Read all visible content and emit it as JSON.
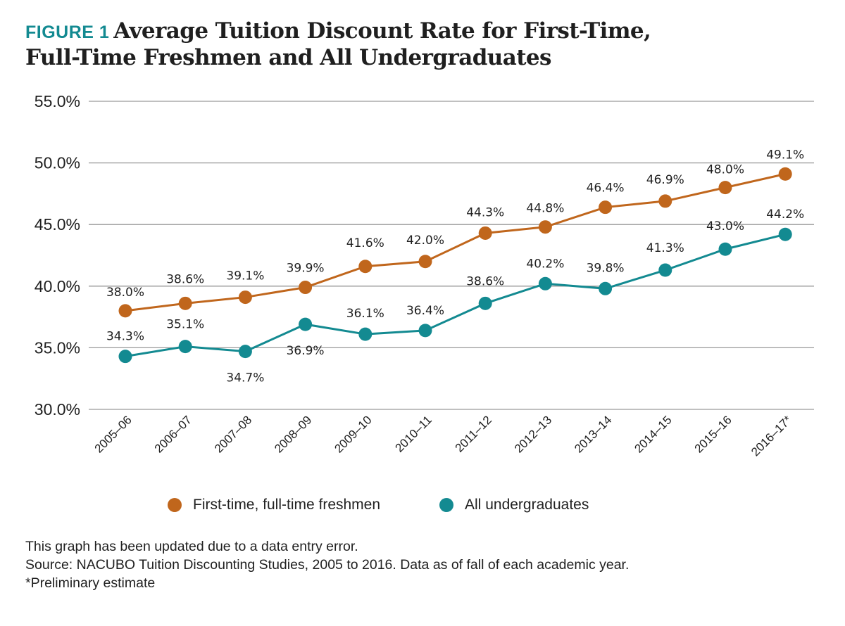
{
  "header": {
    "figure_label": "FIGURE 1",
    "title_line1": "Average Tuition Discount Rate for First-Time,",
    "title_line2": "Full-Time Freshmen and All Undergraduates"
  },
  "chart_data": {
    "type": "line",
    "title": "Average Tuition Discount Rate for First-Time, Full-Time Freshmen and All Undergraduates",
    "xlabel": "",
    "ylabel": "",
    "ylim": [
      30,
      55
    ],
    "yticks": [
      30,
      35,
      40,
      45,
      50,
      55
    ],
    "ytick_labels": [
      "30.0%",
      "35.0%",
      "40.0%",
      "45.0%",
      "50.0%",
      "55.0%"
    ],
    "grid": true,
    "categories": [
      "2005–06",
      "2006–07",
      "2007–08",
      "2008–09",
      "2009–10",
      "2010–11",
      "2011–12",
      "2012–13",
      "2013–14",
      "2014–15",
      "2015–16",
      "2016–17*"
    ],
    "series": [
      {
        "name": "First-time, full-time freshmen",
        "color": "#c0661c",
        "values": [
          38.0,
          38.6,
          39.1,
          39.9,
          41.6,
          42.0,
          44.3,
          44.8,
          46.4,
          46.9,
          48.0,
          49.1
        ],
        "labels": [
          "38.0%",
          "38.6%",
          "39.1%",
          "39.9%",
          "41.6%",
          "42.0%",
          "44.3%",
          "44.8%",
          "46.4%",
          "46.9%",
          "48.0%",
          "49.1%"
        ]
      },
      {
        "name": "All undergraduates",
        "color": "#138a91",
        "values": [
          34.3,
          35.1,
          34.7,
          36.9,
          36.1,
          36.4,
          38.6,
          40.2,
          39.8,
          41.3,
          43.0,
          44.2
        ],
        "labels": [
          "34.3%",
          "35.1%",
          "34.7%",
          "36.9%",
          "36.1%",
          "36.4%",
          "38.6%",
          "40.2%",
          "39.8%",
          "41.3%",
          "43.0%",
          "44.2%"
        ]
      }
    ]
  },
  "legend": {
    "items": [
      {
        "label": "First-time, full-time freshmen",
        "color": "#c0661c"
      },
      {
        "label": "All undergraduates",
        "color": "#138a91"
      }
    ]
  },
  "notes": {
    "line1": "This graph has been updated due to a data entry error.",
    "line2": "Source: NACUBO Tuition Discounting Studies, 2005 to 2016. Data as of fall of each academic year.",
    "line3": "*Preliminary estimate"
  }
}
